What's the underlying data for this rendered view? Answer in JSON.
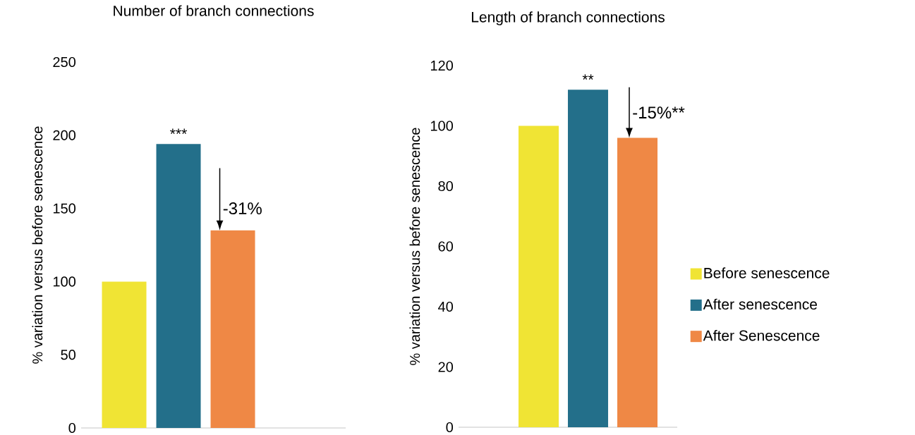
{
  "chart_data": [
    {
      "type": "bar",
      "title": "Number of branch connections",
      "ylabel": "% variation versus before senescence",
      "categories": [
        null
      ],
      "series": [
        {
          "color": "#f0e434",
          "values": [
            100
          ]
        },
        {
          "color": "#236f8a",
          "values": [
            194
          ]
        },
        {
          "color": "#ef8845",
          "values": [
            135
          ]
        }
      ],
      "ylim": [
        0,
        250
      ],
      "yticks": [
        0,
        50,
        100,
        150,
        200,
        250
      ],
      "tick_labels": "y",
      "annotations": [
        "***",
        "-31%"
      ]
    },
    {
      "type": "bar",
      "title": "Length of branch connections",
      "ylabel": "% variation versus before senescence",
      "categories": [
        null
      ],
      "series": [
        {
          "name": "Before senescence",
          "color": "#f0e434",
          "values": [
            100
          ]
        },
        {
          "name": "After senescence",
          "color": "#236f8a",
          "values": [
            112
          ]
        },
        {
          "name": "After Senescence",
          "color": "#ef8845",
          "values": [
            96
          ]
        }
      ],
      "ylim": [
        0,
        120
      ],
      "yticks": [
        0,
        20,
        40,
        60,
        80,
        100,
        120
      ],
      "tick_labels": "y",
      "legend": "right",
      "annotations": [
        "**",
        "-15%**"
      ]
    }
  ]
}
